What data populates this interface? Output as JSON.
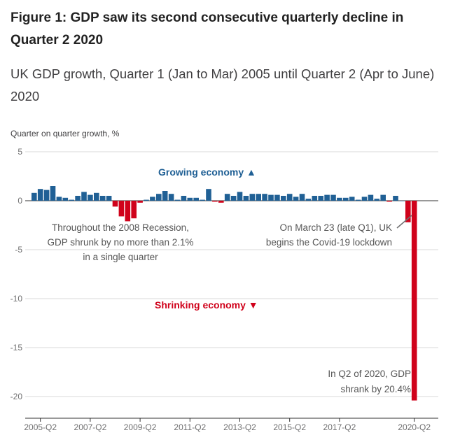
{
  "title": "Figure 1: GDP saw its second consecutive quarterly decline in Quarter 2 2020",
  "subtitle": "UK GDP growth, Quarter 1 (Jan to Mar) 2005 until Quarter 2 (Apr to June) 2020",
  "colors": {
    "positive": "#206095",
    "negative": "#d0021b",
    "grid": "#d9d9d9",
    "axis": "#333333"
  },
  "chart_data": {
    "type": "bar",
    "title": "Figure 1: GDP saw its second consecutive quarterly decline in Quarter 2 2020",
    "subtitle": "UK GDP growth, Quarter 1 (Jan to Mar) 2005 until Quarter 2 (Apr to June) 2020",
    "ylabel": "Quarter on quarter growth, %",
    "xlabel": "",
    "ylim": [
      -21.5,
      5
    ],
    "yticks": [
      5,
      0,
      -5,
      -10,
      -15,
      -20
    ],
    "categories": [
      "2005-Q1",
      "2005-Q2",
      "2005-Q3",
      "2005-Q4",
      "2006-Q1",
      "2006-Q2",
      "2006-Q3",
      "2006-Q4",
      "2007-Q1",
      "2007-Q2",
      "2007-Q3",
      "2007-Q4",
      "2008-Q1",
      "2008-Q2",
      "2008-Q3",
      "2008-Q4",
      "2009-Q1",
      "2009-Q2",
      "2009-Q3",
      "2009-Q4",
      "2010-Q1",
      "2010-Q2",
      "2010-Q3",
      "2010-Q4",
      "2011-Q1",
      "2011-Q2",
      "2011-Q3",
      "2011-Q4",
      "2012-Q1",
      "2012-Q2",
      "2012-Q3",
      "2012-Q4",
      "2013-Q1",
      "2013-Q2",
      "2013-Q3",
      "2013-Q4",
      "2014-Q1",
      "2014-Q2",
      "2014-Q3",
      "2014-Q4",
      "2015-Q1",
      "2015-Q2",
      "2015-Q3",
      "2015-Q4",
      "2016-Q1",
      "2016-Q2",
      "2016-Q3",
      "2016-Q4",
      "2017-Q1",
      "2017-Q2",
      "2017-Q3",
      "2017-Q4",
      "2018-Q1",
      "2018-Q2",
      "2018-Q3",
      "2018-Q4",
      "2019-Q1",
      "2019-Q2",
      "2019-Q3",
      "2019-Q4",
      "2020-Q1",
      "2020-Q2"
    ],
    "values": [
      0.8,
      1.2,
      1.1,
      1.5,
      0.4,
      0.3,
      0.1,
      0.5,
      0.9,
      0.6,
      0.8,
      0.5,
      0.5,
      -0.6,
      -1.6,
      -2.1,
      -1.8,
      -0.2,
      0.1,
      0.4,
      0.7,
      1.0,
      0.7,
      0.1,
      0.5,
      0.3,
      0.3,
      0.1,
      1.2,
      -0.1,
      -0.2,
      0.7,
      0.5,
      0.9,
      0.5,
      0.7,
      0.7,
      0.7,
      0.6,
      0.6,
      0.5,
      0.7,
      0.4,
      0.7,
      0.2,
      0.5,
      0.5,
      0.6,
      0.6,
      0.3,
      0.3,
      0.4,
      0.1,
      0.4,
      0.6,
      0.2,
      0.6,
      -0.1,
      0.5,
      0.0,
      -2.2,
      -20.4
    ],
    "xticks": [
      "2005-Q2",
      "2007-Q2",
      "2009-Q2",
      "2011-Q2",
      "2013-Q2",
      "2015-Q2",
      "2017-Q2",
      "2020-Q2"
    ],
    "annotations": {
      "growing": "Growing economy ▲",
      "shrinking": "Shrinking economy ▼",
      "recession": [
        "Throughout the 2008 Recession,",
        "GDP shrunk by no more than 2.1%",
        "in a single quarter"
      ],
      "lockdown": [
        "On March 23 (late Q1), UK",
        "begins the Covid-19 lockdown"
      ],
      "q2_2020": [
        "In Q2 of 2020, GDP",
        "shrank by 20.4%"
      ]
    }
  }
}
